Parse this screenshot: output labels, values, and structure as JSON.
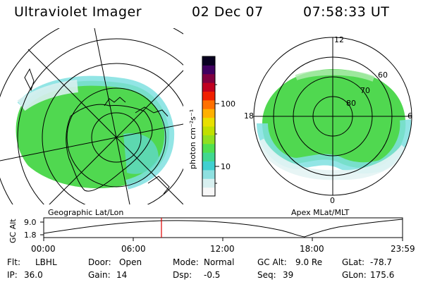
{
  "header": {
    "title": "Ultraviolet Imager",
    "date": "02 Dec 07",
    "time": "07:58:33 UT"
  },
  "left_panel": {
    "caption": "Geographic Lat/Lon"
  },
  "right_panel": {
    "caption": "Apex MLat/MLT",
    "mlt_labels": {
      "top": "12",
      "right": "6",
      "bottom": "0",
      "left": "18"
    },
    "lat_labels": [
      "60",
      "70",
      "80"
    ]
  },
  "colorbar": {
    "unit_label": "photon cm⁻²s⁻¹",
    "tick_labels": [
      "100",
      "10"
    ],
    "colors": [
      "#f8f8f8",
      "#d8f0f0",
      "#8ee0e0",
      "#40d0d0",
      "#40d890",
      "#50e050",
      "#90e020",
      "#c0e000",
      "#e8e000",
      "#ffb000",
      "#ff7000",
      "#f02000",
      "#c00020",
      "#800040",
      "#400060",
      "#080020"
    ]
  },
  "orbit_plot": {
    "ylabel": "GC Alt",
    "y_ticks": [
      "9.0",
      "1.8"
    ],
    "x_ticks": [
      "00:00",
      "06:00",
      "12:00",
      "18:00",
      "23:59"
    ],
    "marker_color": "#e00000"
  },
  "info": {
    "flt_label": "Flt:",
    "flt_value": "LBHL",
    "ip_label": "IP:",
    "ip_value": "36.0",
    "door_label": "Door:",
    "door_value": "Open",
    "gain_label": "Gain:",
    "gain_value": "14",
    "mode_label": "Mode:",
    "mode_value": "Normal",
    "dsp_label": "Dsp:",
    "dsp_value": "-0.5",
    "gcalt_label": "GC Alt:",
    "gcalt_value": "9.0 Re",
    "seq_label": "Seq:",
    "seq_value": "39",
    "glat_label": "GLat:",
    "glat_value": "-78.7",
    "glon_label": "GLon:",
    "glon_value": "175.6"
  }
}
